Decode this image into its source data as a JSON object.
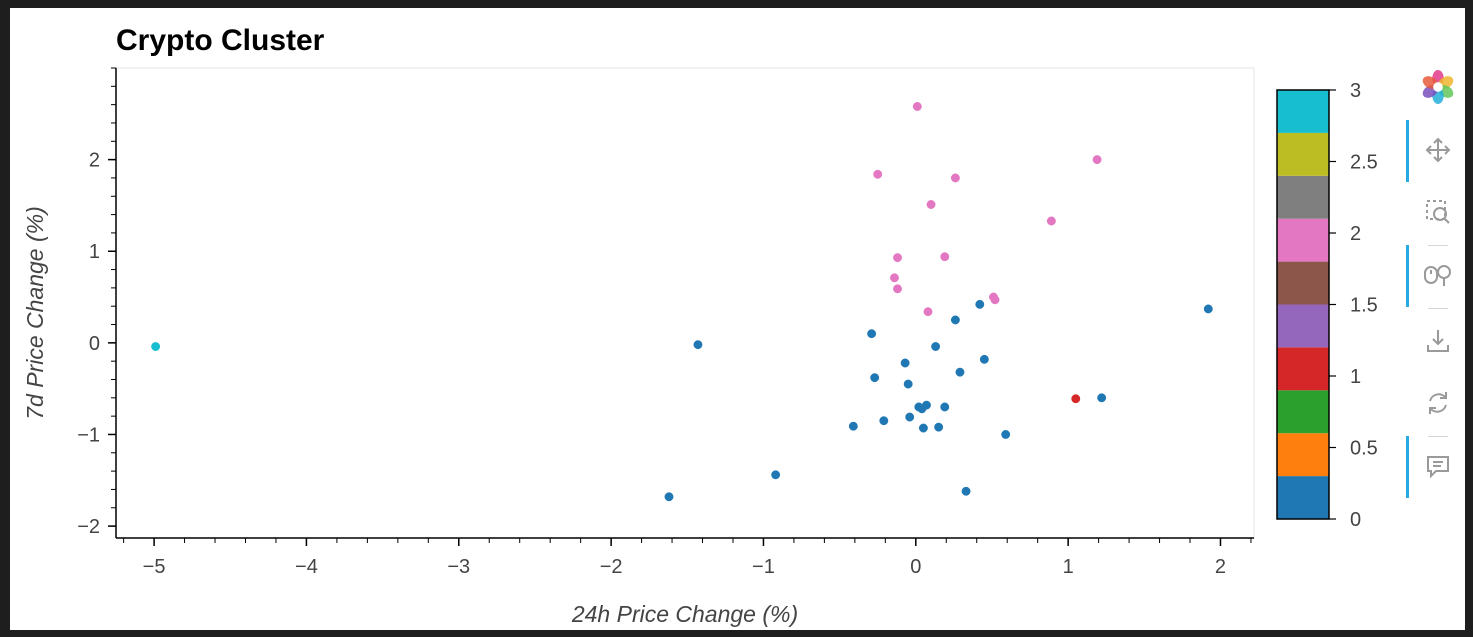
{
  "chart_data": {
    "type": "scatter",
    "title": "Crypto Cluster",
    "xlabel": "24h Price Change (%)",
    "ylabel": "7d Price Change (%)",
    "xlim": [
      -5.25,
      2.22
    ],
    "ylim": [
      -2.13,
      3.0
    ],
    "x_ticks": [
      -5,
      -4,
      -3,
      -2,
      -1,
      0,
      1,
      2
    ],
    "x_tick_labels": [
      "−5",
      "−4",
      "−3",
      "−2",
      "−1",
      "0",
      "1",
      "2"
    ],
    "y_ticks": [
      -2,
      -1,
      0,
      1,
      2
    ],
    "y_tick_labels": [
      "−2",
      "−1",
      "0",
      "1",
      "2"
    ],
    "grid": false,
    "color_by": "cluster",
    "colorbar": {
      "range": [
        0,
        3
      ],
      "ticks": [
        "0",
        "0.5",
        "1",
        "1.5",
        "2",
        "2.5",
        "3"
      ],
      "colors": [
        "#1f77b4",
        "#ff7f0e",
        "#2ca02c",
        "#d62728",
        "#9467bd",
        "#8c564b",
        "#e377c2",
        "#7f7f7f",
        "#bcbd22",
        "#17becf"
      ]
    },
    "points": [
      {
        "x": -4.99,
        "y": -0.04,
        "c": 3
      },
      {
        "x": 1.05,
        "y": -0.61,
        "c": 1
      },
      {
        "x": 0.01,
        "y": 2.58,
        "c": 2
      },
      {
        "x": 1.19,
        "y": 2.0,
        "c": 2
      },
      {
        "x": -0.25,
        "y": 1.84,
        "c": 2
      },
      {
        "x": 0.26,
        "y": 1.8,
        "c": 2
      },
      {
        "x": 0.1,
        "y": 1.51,
        "c": 2
      },
      {
        "x": 0.89,
        "y": 1.33,
        "c": 2
      },
      {
        "x": -0.12,
        "y": 0.93,
        "c": 2
      },
      {
        "x": 0.19,
        "y": 0.94,
        "c": 2
      },
      {
        "x": -0.14,
        "y": 0.71,
        "c": 2
      },
      {
        "x": -0.12,
        "y": 0.59,
        "c": 2
      },
      {
        "x": 0.51,
        "y": 0.5,
        "c": 2
      },
      {
        "x": 0.52,
        "y": 0.47,
        "c": 2
      },
      {
        "x": 0.08,
        "y": 0.34,
        "c": 2
      },
      {
        "x": 1.92,
        "y": 0.37,
        "c": 0
      },
      {
        "x": -1.43,
        "y": -0.02,
        "c": 0
      },
      {
        "x": 0.42,
        "y": 0.42,
        "c": 0
      },
      {
        "x": 0.26,
        "y": 0.25,
        "c": 0
      },
      {
        "x": -0.29,
        "y": 0.1,
        "c": 0
      },
      {
        "x": 0.13,
        "y": -0.04,
        "c": 0
      },
      {
        "x": 0.45,
        "y": -0.18,
        "c": 0
      },
      {
        "x": -0.07,
        "y": -0.22,
        "c": 0
      },
      {
        "x": -0.27,
        "y": -0.38,
        "c": 0
      },
      {
        "x": 0.29,
        "y": -0.32,
        "c": 0
      },
      {
        "x": -0.05,
        "y": -0.45,
        "c": 0
      },
      {
        "x": 1.22,
        "y": -0.6,
        "c": 0
      },
      {
        "x": 0.02,
        "y": -0.7,
        "c": 0
      },
      {
        "x": 0.04,
        "y": -0.72,
        "c": 0
      },
      {
        "x": 0.07,
        "y": -0.68,
        "c": 0
      },
      {
        "x": 0.19,
        "y": -0.7,
        "c": 0
      },
      {
        "x": -0.04,
        "y": -0.81,
        "c": 0
      },
      {
        "x": -0.21,
        "y": -0.85,
        "c": 0
      },
      {
        "x": -0.41,
        "y": -0.91,
        "c": 0
      },
      {
        "x": 0.05,
        "y": -0.93,
        "c": 0
      },
      {
        "x": 0.15,
        "y": -0.92,
        "c": 0
      },
      {
        "x": 0.59,
        "y": -1.0,
        "c": 0
      },
      {
        "x": -0.92,
        "y": -1.44,
        "c": 0
      },
      {
        "x": 0.33,
        "y": -1.62,
        "c": 0
      },
      {
        "x": -1.62,
        "y": -1.68,
        "c": 0
      }
    ]
  },
  "toolbar": {
    "logo": "bokeh-logo-icon",
    "tools": [
      {
        "name": "pan-tool",
        "icon": "move-icon",
        "active": true
      },
      {
        "name": "box-zoom-tool",
        "icon": "box-zoom-icon",
        "active": false
      },
      {
        "name": "wheel-zoom-tool",
        "icon": "wheel-zoom-icon",
        "active": true
      },
      {
        "name": "save-tool",
        "icon": "download-icon",
        "active": false
      },
      {
        "name": "reset-tool",
        "icon": "reset-icon",
        "active": false
      },
      {
        "name": "hover-tool",
        "icon": "hover-icon",
        "active": true
      }
    ]
  }
}
